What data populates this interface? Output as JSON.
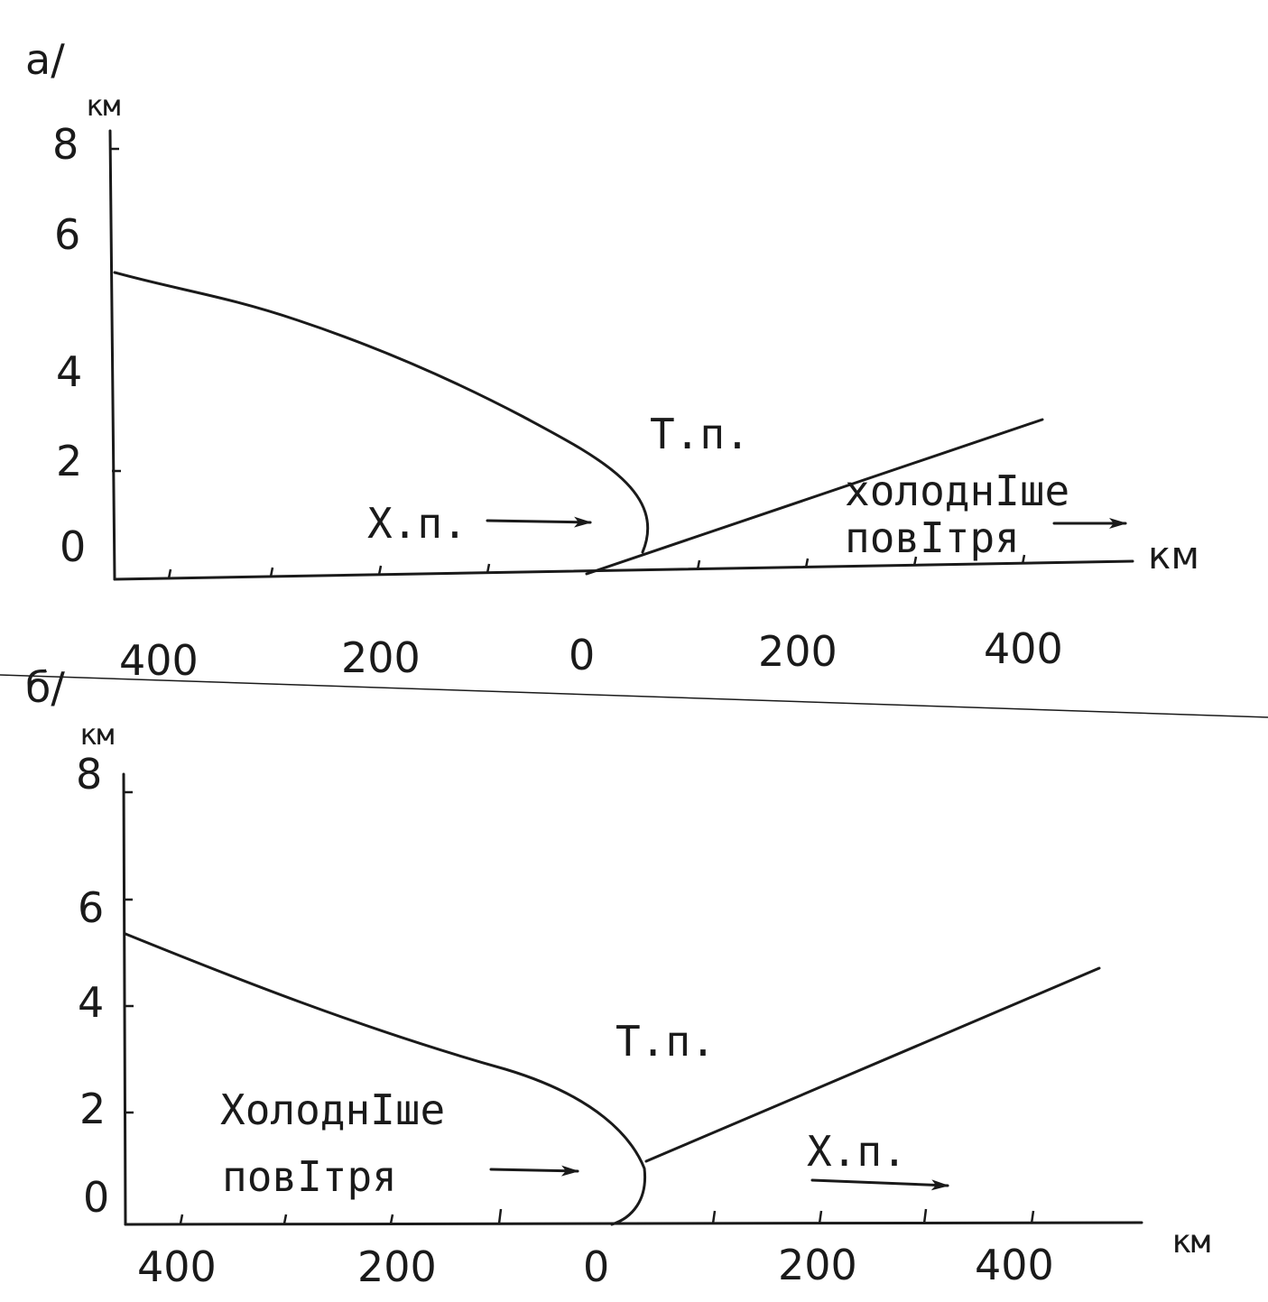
{
  "panel_a": {
    "label": "а/",
    "y_unit": "км",
    "x_unit": "км",
    "y_ticks": [
      "0",
      "2",
      "4",
      "6",
      "8"
    ],
    "x_ticks": [
      "400",
      "200",
      "0",
      "200",
      "400"
    ],
    "warm_air": "Т.п.",
    "cold_air": "Х.п.",
    "colder_air_line1": "холоднІше",
    "colder_air_line2": "повІтря"
  },
  "panel_b": {
    "label": "б/",
    "y_unit": "км",
    "x_unit": "км",
    "y_ticks": [
      "0",
      "2",
      "4",
      "6",
      "8"
    ],
    "x_ticks": [
      "400",
      "200",
      "0",
      "200",
      "400"
    ],
    "warm_air": "Т.п.",
    "cold_air": "Х.п.",
    "colder_air_line1": "ХолоднІше",
    "colder_air_line2": "повІтря"
  },
  "colors": {
    "ink": "#1a1a1a",
    "paper": "#ffffff"
  }
}
